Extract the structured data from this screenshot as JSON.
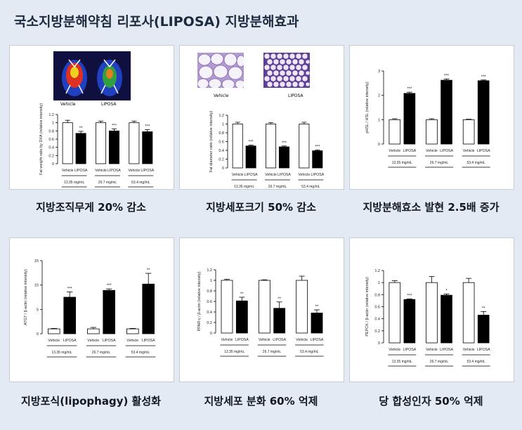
{
  "page": {
    "title": "국소지방분해약침 리포사(LIPOSA)  지방분해효과"
  },
  "panels": [
    {
      "caption": "지방조직무게 20% 감소",
      "photo_labels": [
        "Vehicle",
        "LIPOSA"
      ],
      "chart_data": {
        "type": "bar",
        "ylabel": "Fat weight ratio by DXA (relative intensity)",
        "ylim": [
          0,
          1.2
        ],
        "yticks": [
          0,
          0.2,
          0.4,
          0.6,
          0.8,
          1.0,
          1.2
        ],
        "categories": [
          "Vehicle",
          "LIPOSA",
          "Vehicle",
          "LIPOSA",
          "Vehicle",
          "LIPOSA"
        ],
        "values": [
          1.0,
          0.74,
          1.0,
          0.8,
          1.0,
          0.78
        ],
        "errors": [
          0.06,
          0.05,
          0.04,
          0.05,
          0.04,
          0.05
        ],
        "fills": [
          "white",
          "black",
          "white",
          "black",
          "white",
          "black"
        ],
        "significance": [
          "",
          "**",
          "",
          "***",
          "",
          "***"
        ],
        "groups": [
          "13.35 mg/mL",
          "26.7 mg/mL",
          "53.4 mg/mL"
        ]
      }
    },
    {
      "caption": "지방세포크기 50% 감소",
      "photo_labels": [
        "Vehicle",
        "LIPOSA"
      ],
      "chart_data": {
        "type": "bar",
        "ylabel": "Fat diameter ratio (relative intensity)",
        "ylim": [
          0,
          1.2
        ],
        "yticks": [
          0,
          0.2,
          0.4,
          0.6,
          0.8,
          1.0,
          1.2
        ],
        "categories": [
          "Vehicle",
          "LIPOSA",
          "Vehicle",
          "LIPOSA",
          "Vehicle",
          "LIPOSA"
        ],
        "values": [
          1.0,
          0.5,
          1.0,
          0.48,
          1.0,
          0.39
        ],
        "errors": [
          0.04,
          0.02,
          0.03,
          0.02,
          0.04,
          0.02
        ],
        "fills": [
          "white",
          "black",
          "white",
          "black",
          "white",
          "black"
        ],
        "significance": [
          "",
          "***",
          "",
          "***",
          "",
          "***"
        ],
        "groups": [
          "13.35 mg/mL",
          "26.7 mg/mL",
          "53.4 mg/mL"
        ]
      }
    },
    {
      "caption": "지방분해효소 발현 2.5배 증가",
      "chart_data": {
        "type": "bar",
        "ylabel": "pHSL / HSL (relative intensity)",
        "ylim": [
          0,
          3
        ],
        "yticks": [
          0,
          1,
          2,
          3
        ],
        "categories": [
          "Vehicle",
          "LIPOSA",
          "Vehicle",
          "LIPOSA",
          "Vehicle",
          "LIPOSA"
        ],
        "values": [
          1.0,
          2.08,
          1.0,
          2.62,
          1.0,
          2.6
        ],
        "errors": [
          0.04,
          0.05,
          0.04,
          0.05,
          0.02,
          0.03
        ],
        "fills": [
          "white",
          "black",
          "white",
          "black",
          "white",
          "black"
        ],
        "significance": [
          "",
          "***",
          "",
          "***",
          "",
          "***"
        ],
        "groups": [
          "13.35 mg/mL",
          "26.7 mg/mL",
          "53.4 mg/mL"
        ]
      }
    },
    {
      "caption": "지방포식(lipophagy) 활성화",
      "chart_data": {
        "type": "bar",
        "ylabel": "ATG7 / β-actin (relative intensity)",
        "ylim": [
          0,
          15
        ],
        "yticks": [
          0,
          5,
          10,
          15
        ],
        "categories": [
          "Vehicle",
          "LIPOSA",
          "Vehicle",
          "LIPOSA",
          "Vehicle",
          "LIPOSA"
        ],
        "values": [
          1.0,
          7.5,
          1.0,
          8.9,
          1.0,
          10.2
        ],
        "errors": [
          0.1,
          1.1,
          0.3,
          0.3,
          0.1,
          2.2
        ],
        "fills": [
          "white",
          "black",
          "white",
          "black",
          "white",
          "black"
        ],
        "significance": [
          "",
          "***",
          "",
          "***",
          "",
          "**"
        ],
        "groups": [
          "13.35 mg/mL",
          "26.7 mg/mL",
          "53.4 mg/mL"
        ]
      }
    },
    {
      "caption": "지방세포 분화 60% 억제",
      "chart_data": {
        "type": "bar",
        "ylabel": "PPAR-γ / β-actin (relative intensity)",
        "ylim": [
          0,
          1.2
        ],
        "yticks": [
          0,
          0.2,
          0.4,
          0.6,
          0.8,
          1.0,
          1.2
        ],
        "categories": [
          "Vehicle",
          "LIPOSA",
          "Vehicle",
          "LIPOSA",
          "Vehicle",
          "LIPOSA"
        ],
        "values": [
          1.0,
          0.61,
          1.0,
          0.47,
          1.0,
          0.38
        ],
        "errors": [
          0.02,
          0.07,
          0.01,
          0.12,
          0.08,
          0.06
        ],
        "fills": [
          "white",
          "black",
          "white",
          "black",
          "white",
          "black"
        ],
        "significance": [
          "",
          "**",
          "",
          "**",
          "",
          "**"
        ],
        "groups": [
          "13.35 mg/mL",
          "26.7 mg/mL",
          "53.4 mg/mL"
        ]
      }
    },
    {
      "caption": "당 합성인자 50% 억제",
      "chart_data": {
        "type": "bar",
        "ylabel": "PEPCK / β-actin (relative intensity)",
        "ylim": [
          0,
          1.2
        ],
        "yticks": [
          0,
          0.2,
          0.4,
          0.6,
          0.8,
          1.0,
          1.2
        ],
        "categories": [
          "Vehicle",
          "LIPOSA",
          "Vehicle",
          "LIPOSA",
          "Vehicle",
          "LIPOSA"
        ],
        "values": [
          1.0,
          0.72,
          1.0,
          0.79,
          1.0,
          0.46
        ],
        "errors": [
          0.03,
          0.01,
          0.1,
          0.02,
          0.07,
          0.06
        ],
        "fills": [
          "white",
          "black",
          "white",
          "black",
          "white",
          "black"
        ],
        "significance": [
          "",
          "***",
          "",
          "*",
          "",
          "**"
        ],
        "groups": [
          "13.35 mg/mL",
          "26.7 mg/mL",
          "53.4 mg/mL"
        ]
      }
    }
  ]
}
